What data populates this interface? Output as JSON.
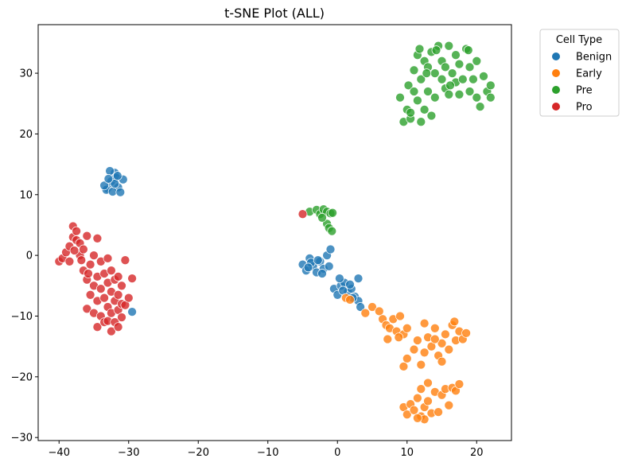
{
  "chart_data": {
    "type": "scatter",
    "title": "t-SNE Plot (ALL)",
    "xlabel": "",
    "ylabel": "",
    "xlim": [
      -43,
      25
    ],
    "ylim": [
      -30.5,
      38
    ],
    "xticks": [
      -40,
      -30,
      -20,
      -10,
      0,
      10,
      20
    ],
    "yticks": [
      -30,
      -20,
      -10,
      0,
      10,
      20,
      30
    ],
    "grid": false,
    "legend": {
      "title": "Cell Type",
      "placement": "outside-top-right"
    },
    "series": [
      {
        "name": "Benign",
        "color": "#1f77b4",
        "points": [
          [
            -33,
            11
          ],
          [
            -32.5,
            12.2
          ],
          [
            -32,
            13.6
          ],
          [
            -31.5,
            11.2
          ],
          [
            -33.2,
            10.8
          ],
          [
            -32.3,
            10.5
          ],
          [
            -31.8,
            12.8
          ],
          [
            -32.7,
            13.9
          ],
          [
            -30.8,
            12.5
          ],
          [
            -33.5,
            11.5
          ],
          [
            -31.2,
            10.4
          ],
          [
            -32,
            11.8
          ],
          [
            -32.9,
            12.6
          ],
          [
            -31.6,
            13.1
          ],
          [
            -5,
            -1.5
          ],
          [
            -4.5,
            -2.5
          ],
          [
            -4,
            -0.5
          ],
          [
            -3.5,
            -1.8
          ],
          [
            -3,
            -2.8
          ],
          [
            -2.5,
            -1
          ],
          [
            -2,
            -2.2
          ],
          [
            -1.5,
            0
          ],
          [
            -1,
            1
          ],
          [
            -2.2,
            -3
          ],
          [
            -3.8,
            -1.2
          ],
          [
            -1.2,
            -1.8
          ],
          [
            -4.2,
            -2
          ],
          [
            -2.8,
            -0.8
          ],
          [
            -0.5,
            -5.5
          ],
          [
            0,
            -6.5
          ],
          [
            0.5,
            -5
          ],
          [
            1,
            -4.5
          ],
          [
            1.5,
            -6
          ],
          [
            2,
            -5.5
          ],
          [
            2.5,
            -6.8
          ],
          [
            3,
            -7.5
          ],
          [
            3.3,
            -8.5
          ],
          [
            1.8,
            -4.8
          ],
          [
            0.3,
            -3.8
          ],
          [
            2.2,
            -7
          ],
          [
            3,
            -3.8
          ],
          [
            0.8,
            -5.8
          ],
          [
            -29.5,
            -9.3
          ]
        ]
      },
      {
        "name": "Early",
        "color": "#ff7f0e",
        "points": [
          [
            1.2,
            -7
          ],
          [
            1.8,
            -7.3
          ],
          [
            4,
            -9.5
          ],
          [
            5,
            -8.5
          ],
          [
            6,
            -9.2
          ],
          [
            6.5,
            -10.5
          ],
          [
            7,
            -11.5
          ],
          [
            7.5,
            -12
          ],
          [
            8,
            -10.5
          ],
          [
            8.5,
            -12.5
          ],
          [
            9,
            -10
          ],
          [
            9.5,
            -13
          ],
          [
            10,
            -12
          ],
          [
            7.2,
            -13.8
          ],
          [
            8.8,
            -13.5
          ],
          [
            10,
            -17
          ],
          [
            11,
            -15.5
          ],
          [
            11.5,
            -14
          ],
          [
            12,
            -18
          ],
          [
            12.5,
            -16
          ],
          [
            13,
            -13.5
          ],
          [
            13.5,
            -15
          ],
          [
            14,
            -12
          ],
          [
            14.5,
            -16.5
          ],
          [
            15,
            -14.5
          ],
          [
            15.5,
            -13
          ],
          [
            16,
            -15.5
          ],
          [
            16.5,
            -11.5
          ],
          [
            17,
            -14
          ],
          [
            17.5,
            -12.5
          ],
          [
            18,
            -13.8
          ],
          [
            18.5,
            -12.8
          ],
          [
            9.5,
            -18.3
          ],
          [
            12.5,
            -11.2
          ],
          [
            15,
            -17.5
          ],
          [
            16.8,
            -10.9
          ],
          [
            14,
            -13.8
          ],
          [
            9.5,
            -25
          ],
          [
            10,
            -26.2
          ],
          [
            10.5,
            -24.5
          ],
          [
            11,
            -25.5
          ],
          [
            11.5,
            -23.5
          ],
          [
            12,
            -26.5
          ],
          [
            12.5,
            -25
          ],
          [
            13,
            -24
          ],
          [
            13.5,
            -26
          ],
          [
            14,
            -22.5
          ],
          [
            14.5,
            -25.8
          ],
          [
            15,
            -23
          ],
          [
            15.5,
            -22
          ],
          [
            16,
            -24.7
          ],
          [
            16.5,
            -21.8
          ],
          [
            17,
            -22.3
          ],
          [
            17.5,
            -21.2
          ],
          [
            13,
            -21
          ],
          [
            12.5,
            -27
          ],
          [
            11.5,
            -26.8
          ],
          [
            12,
            -22
          ]
        ]
      },
      {
        "name": "Pre",
        "color": "#2ca02c",
        "points": [
          [
            -4,
            7.2
          ],
          [
            -3,
            7.5
          ],
          [
            -2.5,
            6.8
          ],
          [
            -2,
            7.6
          ],
          [
            -1.5,
            7.2
          ],
          [
            -1,
            6.9
          ],
          [
            -1.5,
            5.2
          ],
          [
            -1.2,
            4.5
          ],
          [
            -0.8,
            4
          ],
          [
            -2.2,
            6.2
          ],
          [
            -0.7,
            7
          ],
          [
            9,
            26
          ],
          [
            9.5,
            22
          ],
          [
            10,
            24
          ],
          [
            10.2,
            28
          ],
          [
            10.5,
            22.5
          ],
          [
            11,
            27
          ],
          [
            11,
            30.5
          ],
          [
            11.5,
            25.5
          ],
          [
            11.5,
            33
          ],
          [
            12,
            22
          ],
          [
            12,
            29
          ],
          [
            12.5,
            24
          ],
          [
            12.5,
            32
          ],
          [
            13,
            27
          ],
          [
            13,
            31
          ],
          [
            13.5,
            23
          ],
          [
            13.5,
            33.5
          ],
          [
            14,
            26
          ],
          [
            14,
            30
          ],
          [
            14.5,
            34.5
          ],
          [
            15,
            29
          ],
          [
            15,
            32
          ],
          [
            15.5,
            27.5
          ],
          [
            15.5,
            31
          ],
          [
            16,
            26.5
          ],
          [
            16,
            34.5
          ],
          [
            16.5,
            30
          ],
          [
            17,
            28.5
          ],
          [
            17,
            33
          ],
          [
            17.5,
            26.5
          ],
          [
            17.5,
            31.5
          ],
          [
            18,
            29
          ],
          [
            18.5,
            34
          ],
          [
            19,
            27
          ],
          [
            19,
            31
          ],
          [
            19.5,
            29
          ],
          [
            20,
            26
          ],
          [
            20,
            32
          ],
          [
            20.5,
            24.5
          ],
          [
            21,
            29.5
          ],
          [
            21.5,
            27
          ],
          [
            22,
            26
          ],
          [
            22,
            28
          ],
          [
            11.8,
            34
          ],
          [
            14.2,
            33.8
          ],
          [
            18.8,
            33.8
          ],
          [
            10.5,
            23.5
          ],
          [
            12.8,
            30
          ],
          [
            16.2,
            28
          ]
        ]
      },
      {
        "name": "Pro",
        "color": "#d62728",
        "points": [
          [
            -5,
            6.8
          ],
          [
            -40,
            -1
          ],
          [
            -39.5,
            -0.5
          ],
          [
            -39,
            0.5
          ],
          [
            -38.5,
            1.5
          ],
          [
            -38,
            3
          ],
          [
            -38,
            4.8
          ],
          [
            -37.5,
            2.5
          ],
          [
            -37.5,
            4
          ],
          [
            -37,
            0
          ],
          [
            -37,
            2
          ],
          [
            -36.5,
            -2.5
          ],
          [
            -36.5,
            1
          ],
          [
            -36,
            -4
          ],
          [
            -36,
            -8.8
          ],
          [
            -36,
            3.2
          ],
          [
            -35.5,
            -1.5
          ],
          [
            -35.5,
            -6.5
          ],
          [
            -35,
            0
          ],
          [
            -35,
            -5
          ],
          [
            -35,
            -9.5
          ],
          [
            -34.5,
            2.8
          ],
          [
            -34.5,
            -3.5
          ],
          [
            -34.5,
            -7.5
          ],
          [
            -34.5,
            -11.8
          ],
          [
            -34,
            -1
          ],
          [
            -34,
            -5.5
          ],
          [
            -34,
            -10
          ],
          [
            -33.5,
            -3
          ],
          [
            -33.5,
            -7
          ],
          [
            -33.5,
            -11
          ],
          [
            -33,
            -0.5
          ],
          [
            -33,
            -4.5
          ],
          [
            -33,
            -8.5
          ],
          [
            -33,
            -10.8
          ],
          [
            -32.5,
            -2.5
          ],
          [
            -32.5,
            -6
          ],
          [
            -32.5,
            -9.5
          ],
          [
            -32.5,
            -12.5
          ],
          [
            -32,
            -4
          ],
          [
            -32,
            -7.5
          ],
          [
            -32,
            -11
          ],
          [
            -31.5,
            -3.5
          ],
          [
            -31.5,
            -6.5
          ],
          [
            -31.5,
            -9
          ],
          [
            -31.5,
            -11.8
          ],
          [
            -31,
            -5
          ],
          [
            -31,
            -8
          ],
          [
            -31,
            -10.2
          ],
          [
            -30.5,
            -0.8
          ],
          [
            -30.5,
            -8.2
          ],
          [
            -30,
            -7
          ],
          [
            -29.5,
            -3.8
          ],
          [
            -38.5,
            -1
          ],
          [
            -37.8,
            0.8
          ],
          [
            -36.8,
            -0.8
          ],
          [
            -35.8,
            -3
          ]
        ]
      }
    ]
  }
}
